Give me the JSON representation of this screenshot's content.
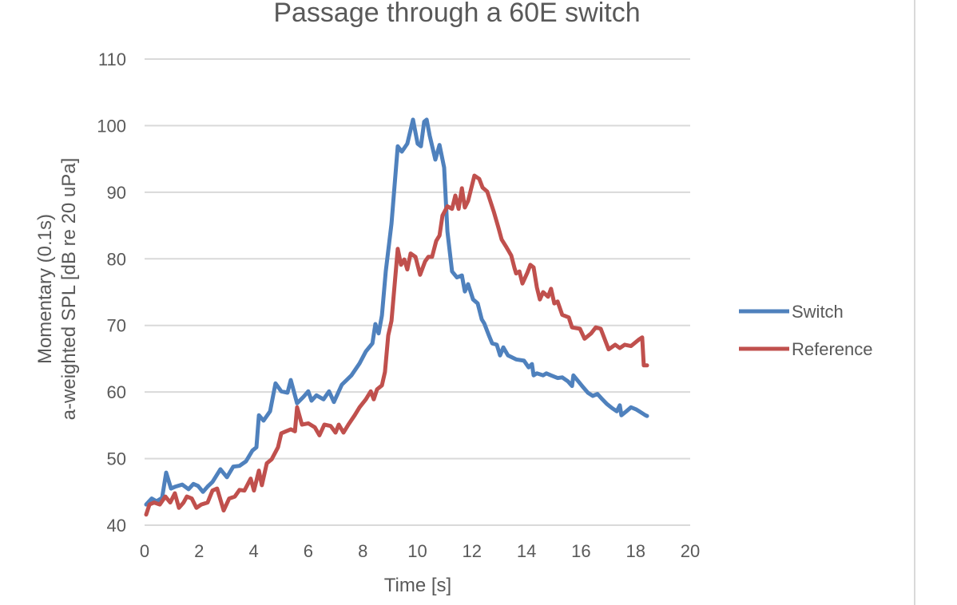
{
  "chart_data": {
    "type": "line",
    "title": "Passage through a 60E switch",
    "xlabel": "Time [s]",
    "ylabel_lines": [
      "Momentary (0.1s)",
      "a-weighted SPL [dB re 20 uPa]"
    ],
    "xlim": [
      0,
      20
    ],
    "ylim": [
      40,
      110
    ],
    "xticks": [
      0,
      2,
      4,
      6,
      8,
      10,
      12,
      14,
      16,
      18,
      20
    ],
    "yticks": [
      40,
      50,
      60,
      70,
      80,
      90,
      100,
      110
    ],
    "grid": "horizontal",
    "legend_position": "right",
    "series": [
      {
        "name": "Switch",
        "color": "#4F81BD",
        "x": [
          0.06,
          0.26,
          0.44,
          0.64,
          0.79,
          0.97,
          1.14,
          1.38,
          1.61,
          1.79,
          1.96,
          2.14,
          2.31,
          2.49,
          2.78,
          3.02,
          3.25,
          3.48,
          3.72,
          3.95,
          4.1,
          4.19,
          4.36,
          4.6,
          4.8,
          5.01,
          5.24,
          5.36,
          5.59,
          5.83,
          6.0,
          6.12,
          6.3,
          6.56,
          6.76,
          6.94,
          7.23,
          7.58,
          7.88,
          8.11,
          8.35,
          8.46,
          8.58,
          8.7,
          8.84,
          9.05,
          9.28,
          9.43,
          9.63,
          9.84,
          10.01,
          10.13,
          10.25,
          10.34,
          10.45,
          10.66,
          10.81,
          10.98,
          11.1,
          11.27,
          11.45,
          11.63,
          11.74,
          11.86,
          12.04,
          12.21,
          12.36,
          12.45,
          12.62,
          12.74,
          12.91,
          13.03,
          13.15,
          13.32,
          13.62,
          13.91,
          14.08,
          14.2,
          14.26,
          14.38,
          14.61,
          14.73,
          14.9,
          15.14,
          15.31,
          15.52,
          15.67,
          15.72,
          15.9,
          16.08,
          16.25,
          16.43,
          16.6,
          16.78,
          16.95,
          17.13,
          17.31,
          17.42,
          17.48,
          17.66,
          17.83,
          18.01,
          18.13,
          18.36,
          18.42
        ],
        "y": [
          43.1,
          44.0,
          43.6,
          44.1,
          47.9,
          45.5,
          45.8,
          46.1,
          45.4,
          46.2,
          45.9,
          45.0,
          45.8,
          46.5,
          48.4,
          47.2,
          48.8,
          48.9,
          49.6,
          51.2,
          51.7,
          56.5,
          55.7,
          57.1,
          61.3,
          60.1,
          59.9,
          61.8,
          58.3,
          59.3,
          60.1,
          58.7,
          59.5,
          58.9,
          60.1,
          58.5,
          61.1,
          62.5,
          64.3,
          66.1,
          67.3,
          70.2,
          68.8,
          71.5,
          78.1,
          85.3,
          96.9,
          96.1,
          97.3,
          100.9,
          97.3,
          96.9,
          100.6,
          100.9,
          98.5,
          94.9,
          97.1,
          93.7,
          84.1,
          78.1,
          77.2,
          77.5,
          75.1,
          76.2,
          73.9,
          73.3,
          70.9,
          70.3,
          68.5,
          67.3,
          67.1,
          65.5,
          66.7,
          65.5,
          64.9,
          64.7,
          63.7,
          64.2,
          62.5,
          62.8,
          62.5,
          62.8,
          62.5,
          62.1,
          62.2,
          61.6,
          60.9,
          62.5,
          61.6,
          60.7,
          59.9,
          59.4,
          59.7,
          58.9,
          58.2,
          57.6,
          57.1,
          58.0,
          56.5,
          57.1,
          57.7,
          57.4,
          57.1,
          56.5,
          56.4
        ]
      },
      {
        "name": "Reference",
        "color": "#C0504D",
        "x": [
          0.06,
          0.18,
          0.35,
          0.56,
          0.76,
          0.94,
          1.11,
          1.26,
          1.43,
          1.55,
          1.73,
          1.9,
          2.08,
          2.31,
          2.49,
          2.66,
          2.9,
          3.1,
          3.31,
          3.48,
          3.66,
          3.89,
          4.01,
          4.19,
          4.3,
          4.48,
          4.66,
          4.89,
          5.01,
          5.18,
          5.36,
          5.51,
          5.59,
          5.77,
          6.0,
          6.24,
          6.41,
          6.59,
          6.82,
          7.0,
          7.12,
          7.29,
          7.47,
          7.7,
          7.88,
          8.11,
          8.29,
          8.4,
          8.52,
          8.7,
          8.81,
          8.93,
          9.05,
          9.28,
          9.4,
          9.52,
          9.63,
          9.75,
          9.93,
          10.1,
          10.28,
          10.4,
          10.54,
          10.69,
          10.81,
          10.92,
          11.1,
          11.27,
          11.39,
          11.51,
          11.63,
          11.74,
          11.86,
          12.09,
          12.27,
          12.39,
          12.56,
          12.8,
          12.97,
          13.09,
          13.27,
          13.44,
          13.56,
          13.62,
          13.74,
          13.85,
          14.03,
          14.14,
          14.26,
          14.38,
          14.49,
          14.61,
          14.79,
          14.9,
          15.02,
          15.14,
          15.31,
          15.55,
          15.67,
          15.96,
          16.13,
          16.37,
          16.54,
          16.72,
          17.01,
          17.25,
          17.42,
          17.6,
          17.83,
          18.01,
          18.13,
          18.24,
          18.3,
          18.42
        ],
        "y": [
          41.6,
          43.1,
          43.4,
          43.1,
          44.3,
          43.4,
          44.8,
          42.6,
          43.4,
          44.3,
          44.0,
          42.6,
          43.1,
          43.4,
          45.2,
          45.5,
          42.2,
          44.0,
          44.3,
          45.3,
          45.2,
          47.0,
          45.2,
          48.2,
          46.0,
          49.3,
          49.9,
          51.7,
          53.8,
          54.1,
          54.4,
          54.1,
          57.7,
          55.1,
          55.3,
          54.7,
          53.5,
          55.1,
          54.9,
          53.9,
          55.1,
          53.9,
          55.1,
          56.5,
          57.7,
          58.9,
          60.1,
          58.9,
          60.4,
          61.0,
          63.0,
          68.5,
          70.7,
          81.5,
          79.1,
          79.9,
          78.4,
          80.8,
          80.3,
          77.6,
          79.6,
          80.3,
          80.3,
          82.7,
          83.5,
          86.5,
          87.9,
          87.5,
          89.5,
          87.5,
          90.6,
          87.7,
          88.7,
          92.5,
          92.0,
          90.7,
          90.1,
          87.1,
          84.7,
          82.9,
          81.7,
          80.5,
          78.6,
          77.8,
          78.1,
          76.3,
          77.9,
          79.1,
          78.7,
          75.7,
          73.9,
          75.0,
          74.3,
          75.5,
          73.3,
          73.6,
          71.6,
          71.2,
          69.7,
          69.5,
          68.0,
          68.8,
          69.7,
          69.5,
          66.4,
          67.1,
          66.6,
          67.1,
          66.9,
          67.5,
          67.9,
          68.2,
          64.0,
          64.0
        ]
      }
    ]
  }
}
